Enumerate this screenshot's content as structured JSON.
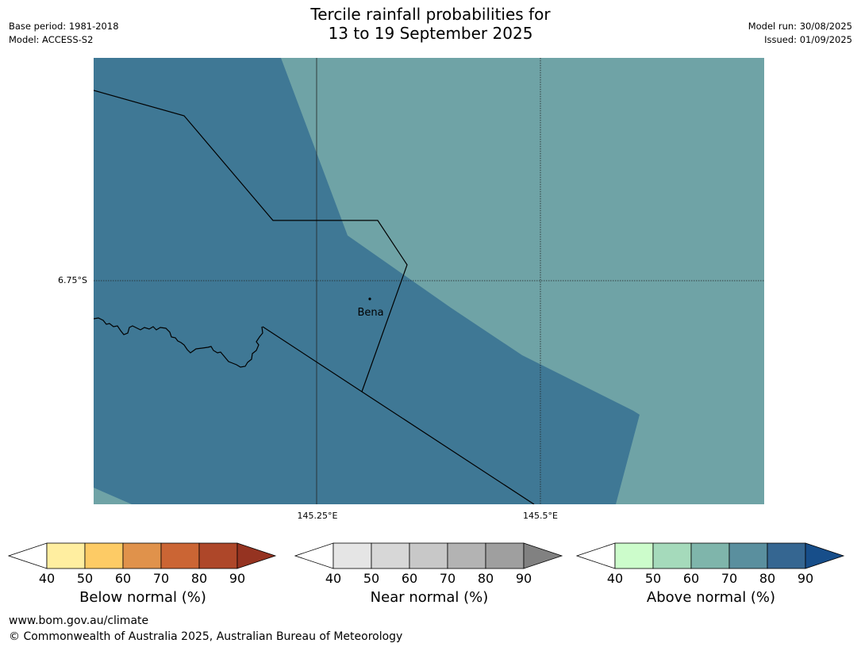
{
  "header": {
    "title_line1": "Tercile rainfall probabilities for",
    "title_line2": "13 to 19 September 2025",
    "base_period": "Base period: 1981-2018",
    "model": "Model: ACCESS-S2",
    "model_run": "Model run: 30/08/2025",
    "issued": "Issued: 01/09/2025"
  },
  "map": {
    "lat_labels": [
      "6.75°S"
    ],
    "lon_labels": [
      "145.25°E",
      "145.5°E"
    ],
    "place": {
      "name": "Bena"
    },
    "colors": {
      "low_prob": "#6fa3a6",
      "high_prob": "#3f7895"
    }
  },
  "legends": [
    {
      "title": "Below normal (%)",
      "ticks": [
        "40",
        "50",
        "60",
        "70",
        "80",
        "90"
      ],
      "colors": [
        "#ffeea0",
        "#fdcb65",
        "#e0924b",
        "#cb6534",
        "#ae4729"
      ],
      "arrow_color": "#953321"
    },
    {
      "title": "Near normal (%)",
      "ticks": [
        "40",
        "50",
        "60",
        "70",
        "80",
        "90"
      ],
      "colors": [
        "#e5e5e5",
        "#d7d7d7",
        "#c8c8c8",
        "#b3b3b3",
        "#9f9f9f"
      ],
      "arrow_color": "#818181"
    },
    {
      "title": "Above normal (%)",
      "ticks": [
        "40",
        "50",
        "60",
        "70",
        "80",
        "90"
      ],
      "colors": [
        "#ccfccb",
        "#a5dabb",
        "#7fb5ab",
        "#5a8f9e",
        "#356691"
      ],
      "arrow_color": "#174e8a"
    }
  ],
  "footer": {
    "url": "www.bom.gov.au/climate",
    "copyright": "© Commonwealth of Australia 2025, Australian Bureau of Meteorology"
  }
}
